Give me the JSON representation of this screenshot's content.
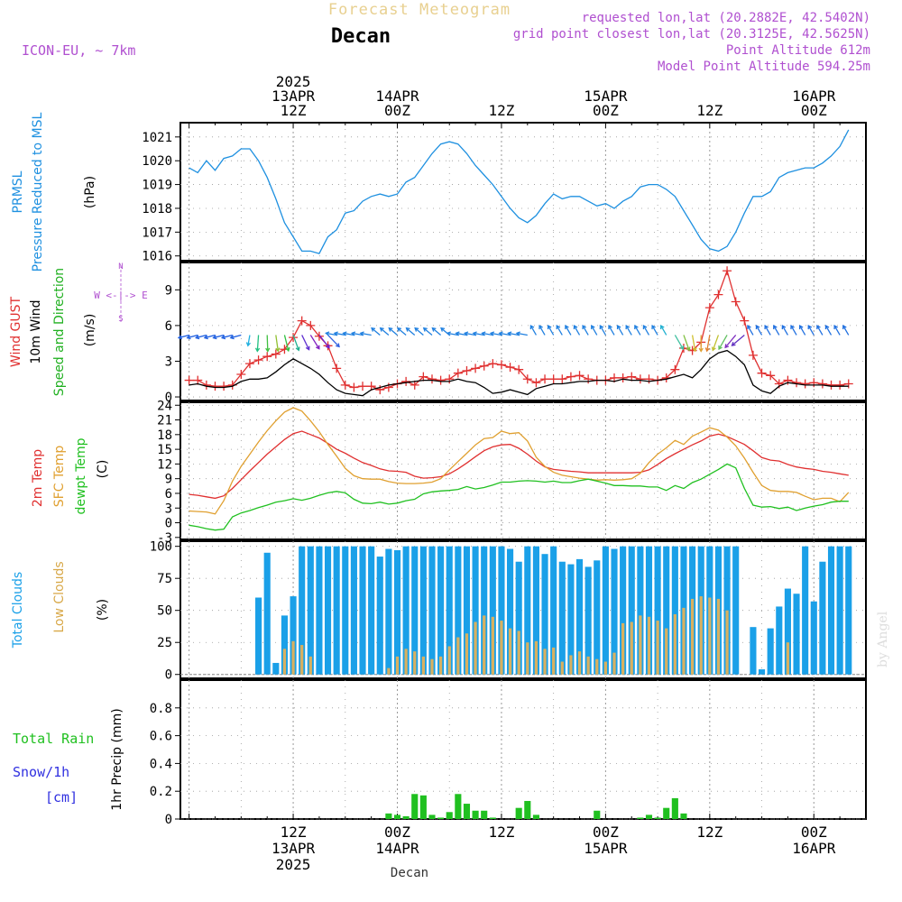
{
  "header": {
    "title": "Forecast Meteogram",
    "location": "Decan",
    "model": "ICON-EU, ~ 7km",
    "requested": "requested lon,lat (20.2882E, 42.5402N)",
    "gridpoint": "grid point closest lon,lat (20.3125E, 42.5625N)",
    "point_alt": "Point Altitude 612m",
    "model_alt": "Model Point Altitude 594.25m",
    "footer_name": "Decan",
    "watermark": "by Angel"
  },
  "time_axis": {
    "top_labels": [
      {
        "t": 12,
        "lines": [
          "2025",
          "13APR",
          "12Z"
        ]
      },
      {
        "t": 24,
        "lines": [
          "14APR",
          "00Z"
        ]
      },
      {
        "t": 36,
        "lines": [
          "12Z"
        ]
      },
      {
        "t": 48,
        "lines": [
          "15APR",
          "00Z"
        ]
      },
      {
        "t": 60,
        "lines": [
          "12Z"
        ]
      },
      {
        "t": 72,
        "lines": [
          "16APR",
          "00Z"
        ]
      }
    ],
    "bottom_labels": [
      {
        "t": 12,
        "lines": [
          "12Z",
          "13APR",
          "2025"
        ]
      },
      {
        "t": 24,
        "lines": [
          "00Z",
          "14APR"
        ]
      },
      {
        "t": 36,
        "lines": [
          "12Z"
        ]
      },
      {
        "t": 48,
        "lines": [
          "00Z",
          "15APR"
        ]
      },
      {
        "t": 60,
        "lines": [
          "12Z"
        ]
      },
      {
        "t": 72,
        "lines": [
          "00Z",
          "16APR"
        ]
      }
    ]
  },
  "colors": {
    "pressure": "#1e90e0",
    "gust": "#e03030",
    "wind": "#000000",
    "t2m": "#e03030",
    "sfc": "#e0a030",
    "dewpt": "#20c020",
    "total_clouds": "#1aa0e8",
    "low_clouds": "#d8b060",
    "rain": "#20c020",
    "snow": "#3030e0",
    "label_purple": "#b050d0"
  },
  "chart_data": [
    {
      "type": "line",
      "title": "PRMSL Pressure Reduced to MSL",
      "ylabel_lines": [
        "PRMSL",
        "Pressure Reduced to MSL"
      ],
      "unit": "(hPa)",
      "ylim": [
        1015.8,
        1021.6
      ],
      "yticks": [
        1016,
        1017,
        1018,
        1019,
        1020,
        1021
      ],
      "x": [
        0,
        1,
        2,
        3,
        4,
        5,
        6,
        7,
        8,
        9,
        10,
        11,
        12,
        13,
        14,
        15,
        16,
        17,
        18,
        19,
        20,
        21,
        22,
        23,
        24,
        25,
        26,
        27,
        28,
        29,
        30,
        31,
        32,
        33,
        34,
        35,
        36,
        37,
        38,
        39,
        40,
        41,
        42,
        43,
        44,
        45,
        46,
        47,
        48,
        49,
        50,
        51,
        52,
        53,
        54,
        55,
        56,
        57,
        58,
        59,
        60,
        61,
        62,
        63,
        64,
        65,
        66,
        67,
        68,
        69,
        70,
        71,
        72,
        73,
        74,
        75,
        76
      ],
      "series": [
        {
          "name": "PRMSL",
          "values": [
            1019.7,
            1019.5,
            1020.0,
            1019.6,
            1020.1,
            1020.2,
            1020.5,
            1020.5,
            1020.0,
            1019.3,
            1018.4,
            1017.4,
            1016.8,
            1016.2,
            1016.2,
            1016.1,
            1016.8,
            1017.1,
            1017.8,
            1017.9,
            1018.3,
            1018.5,
            1018.6,
            1018.5,
            1018.6,
            1019.1,
            1019.3,
            1019.8,
            1020.3,
            1020.7,
            1020.8,
            1020.7,
            1020.3,
            1019.8,
            1019.4,
            1019.0,
            1018.5,
            1018.0,
            1017.6,
            1017.4,
            1017.7,
            1018.2,
            1018.6,
            1018.4,
            1018.5,
            1018.5,
            1018.3,
            1018.1,
            1018.2,
            1018.0,
            1018.3,
            1018.5,
            1018.9,
            1019.0,
            1019.0,
            1018.8,
            1018.5,
            1017.9,
            1017.3,
            1016.7,
            1016.3,
            1016.2,
            1016.4,
            1017.0,
            1017.8,
            1018.5,
            1018.5,
            1018.7,
            1019.3,
            1019.5,
            1019.6,
            1019.7,
            1019.7,
            1019.9,
            1020.2,
            1020.6,
            1021.3
          ]
        }
      ]
    },
    {
      "type": "line",
      "title": "Wind GUST / 10m Wind Speed and Direction",
      "ylabel_lines": [
        "Wind GUST",
        "10m Wind",
        "Speed and Direction"
      ],
      "unit": "(m/s)",
      "compass": "W <-|-> E",
      "ylim": [
        -0.3,
        11.3
      ],
      "yticks": [
        0,
        3,
        6,
        9
      ],
      "x": [
        0,
        1,
        2,
        3,
        4,
        5,
        6,
        7,
        8,
        9,
        10,
        11,
        12,
        13,
        14,
        15,
        16,
        17,
        18,
        19,
        20,
        21,
        22,
        23,
        24,
        25,
        26,
        27,
        28,
        29,
        30,
        31,
        32,
        33,
        34,
        35,
        36,
        37,
        38,
        39,
        40,
        41,
        42,
        43,
        44,
        45,
        46,
        47,
        48,
        49,
        50,
        51,
        52,
        53,
        54,
        55,
        56,
        57,
        58,
        59,
        60,
        61,
        62,
        63,
        64,
        65,
        66,
        67,
        68,
        69,
        70,
        71,
        72,
        73,
        74,
        75,
        76
      ],
      "series": [
        {
          "name": "Wind GUST",
          "values": [
            1.4,
            1.4,
            1.0,
            0.9,
            0.9,
            1.0,
            1.9,
            2.8,
            3.1,
            3.4,
            3.6,
            4.0,
            5.0,
            6.4,
            6.0,
            5.1,
            4.3,
            2.4,
            1.0,
            0.8,
            0.9,
            0.9,
            0.6,
            0.8,
            1.1,
            1.3,
            1.0,
            1.7,
            1.5,
            1.4,
            1.5,
            2.0,
            2.2,
            2.4,
            2.6,
            2.8,
            2.7,
            2.5,
            2.3,
            1.5,
            1.2,
            1.5,
            1.5,
            1.5,
            1.7,
            1.8,
            1.5,
            1.4,
            1.4,
            1.6,
            1.6,
            1.7,
            1.5,
            1.5,
            1.4,
            1.6,
            2.3,
            4.1,
            3.9,
            4.6,
            7.5,
            8.6,
            10.6,
            8.0,
            6.4,
            3.5,
            2.0,
            1.8,
            1.1,
            1.4,
            1.2,
            1.1,
            1.2,
            1.1,
            1.0,
            1.0,
            1.1
          ]
        },
        {
          "name": "10m Wind",
          "values": [
            1.0,
            1.1,
            0.9,
            0.8,
            0.8,
            0.9,
            1.3,
            1.5,
            1.5,
            1.6,
            2.1,
            2.7,
            3.2,
            2.8,
            2.4,
            1.9,
            1.2,
            0.6,
            0.3,
            0.2,
            0.1,
            0.6,
            0.8,
            1.0,
            1.1,
            1.2,
            1.3,
            1.4,
            1.4,
            1.3,
            1.3,
            1.5,
            1.3,
            1.2,
            0.8,
            0.3,
            0.4,
            0.6,
            0.4,
            0.2,
            0.7,
            0.9,
            1.1,
            1.1,
            1.2,
            1.3,
            1.3,
            1.4,
            1.4,
            1.3,
            1.5,
            1.4,
            1.4,
            1.3,
            1.4,
            1.5,
            1.7,
            1.9,
            1.6,
            2.3,
            3.2,
            3.7,
            3.9,
            3.4,
            2.7,
            1.0,
            0.5,
            0.3,
            0.9,
            1.2,
            1.1,
            1.0,
            1.0,
            1.0,
            0.9,
            0.9,
            0.9
          ]
        }
      ],
      "arrows": {
        "from_t": 0,
        "to_t": 76,
        "step": 1,
        "baseline": 5.2
      }
    },
    {
      "type": "line",
      "title": "2m Temp / SFC Temp / dewpt Temp",
      "ylabel_lines": [
        "2m Temp",
        "SFC Temp",
        "dewpt Temp"
      ],
      "unit": "(C)",
      "ylim": [
        -3.4,
        24.6
      ],
      "yticks": [
        -3,
        0,
        3,
        6,
        9,
        12,
        15,
        18,
        21,
        24
      ],
      "x": [
        0,
        1,
        2,
        3,
        4,
        5,
        6,
        7,
        8,
        9,
        10,
        11,
        12,
        13,
        14,
        15,
        16,
        17,
        18,
        19,
        20,
        21,
        22,
        23,
        24,
        25,
        26,
        27,
        28,
        29,
        30,
        31,
        32,
        33,
        34,
        35,
        36,
        37,
        38,
        39,
        40,
        41,
        42,
        43,
        44,
        45,
        46,
        47,
        48,
        49,
        50,
        51,
        52,
        53,
        54,
        55,
        56,
        57,
        58,
        59,
        60,
        61,
        62,
        63,
        64,
        65,
        66,
        67,
        68,
        69,
        70,
        71,
        72,
        73,
        74,
        75,
        76
      ],
      "series": [
        {
          "name": "2m Temp",
          "values": [
            5.8,
            5.6,
            5.3,
            5.0,
            5.5,
            7.0,
            8.8,
            10.6,
            12.3,
            14.0,
            15.5,
            17.0,
            18.2,
            18.7,
            18.0,
            17.3,
            16.2,
            15.0,
            14.2,
            13.2,
            12.3,
            11.7,
            11.0,
            10.6,
            10.5,
            10.3,
            9.5,
            9.1,
            9.2,
            9.4,
            10.0,
            11.0,
            12.2,
            13.5,
            14.7,
            15.5,
            15.9,
            16.0,
            15.2,
            14.0,
            12.6,
            11.4,
            10.9,
            10.7,
            10.5,
            10.4,
            10.2,
            10.2,
            10.2,
            10.2,
            10.2,
            10.2,
            10.3,
            10.8,
            11.9,
            13.1,
            14.1,
            15.0,
            15.9,
            16.7,
            17.7,
            18.1,
            17.6,
            16.8,
            16.0,
            14.7,
            13.3,
            12.8,
            12.6,
            11.9,
            11.4,
            11.1,
            10.9,
            10.5,
            10.3,
            10.0,
            9.7
          ]
        },
        {
          "name": "SFC Temp",
          "values": [
            2.4,
            2.3,
            2.2,
            1.8,
            4.5,
            8.5,
            11.5,
            14.0,
            16.5,
            18.8,
            20.8,
            22.6,
            23.5,
            22.8,
            20.8,
            18.6,
            16.0,
            13.6,
            11.1,
            9.6,
            9.0,
            8.9,
            8.9,
            8.4,
            8.1,
            8.0,
            8.0,
            8.1,
            8.3,
            9.0,
            10.8,
            12.5,
            14.2,
            15.9,
            17.2,
            17.4,
            18.7,
            18.2,
            18.4,
            16.7,
            13.4,
            11.5,
            10.3,
            9.7,
            9.4,
            9.1,
            8.9,
            8.7,
            8.8,
            8.7,
            8.8,
            9.0,
            10.1,
            12.3,
            14.0,
            15.3,
            16.8,
            16.0,
            17.7,
            18.5,
            19.4,
            18.9,
            17.5,
            15.7,
            13.2,
            10.3,
            7.6,
            6.6,
            6.4,
            6.4,
            6.2,
            5.4,
            4.7,
            5.0,
            5.0,
            4.3,
            6.2
          ]
        },
        {
          "name": "dewpt Temp",
          "values": [
            -0.5,
            -0.8,
            -1.2,
            -1.5,
            -1.3,
            1.2,
            2.0,
            2.5,
            3.1,
            3.6,
            4.2,
            4.5,
            4.9,
            4.6,
            5.0,
            5.6,
            6.1,
            6.4,
            6.1,
            4.8,
            4.0,
            3.9,
            4.2,
            3.8,
            4.0,
            4.5,
            4.8,
            5.9,
            6.3,
            6.5,
            6.6,
            6.8,
            7.4,
            6.9,
            7.2,
            7.7,
            8.3,
            8.3,
            8.5,
            8.6,
            8.5,
            8.3,
            8.5,
            8.2,
            8.2,
            8.6,
            8.9,
            8.5,
            8.1,
            7.6,
            7.6,
            7.5,
            7.5,
            7.3,
            7.3,
            6.6,
            7.6,
            7.0,
            8.2,
            8.9,
            9.9,
            10.9,
            12.0,
            11.2,
            7.0,
            3.6,
            3.2,
            3.3,
            2.9,
            3.2,
            2.5,
            3.0,
            3.4,
            3.7,
            4.2,
            4.4,
            4.4
          ]
        }
      ]
    },
    {
      "type": "bar",
      "title": "Total Clouds / Low Clouds",
      "ylabel_lines": [
        "Total Clouds",
        "Low Clouds"
      ],
      "unit": "(%)",
      "ylim": [
        -3,
        104
      ],
      "yticks": [
        0,
        25,
        50,
        75,
        100
      ],
      "x": [
        0,
        1,
        2,
        3,
        4,
        5,
        6,
        7,
        8,
        9,
        10,
        11,
        12,
        13,
        14,
        15,
        16,
        17,
        18,
        19,
        20,
        21,
        22,
        23,
        24,
        25,
        26,
        27,
        28,
        29,
        30,
        31,
        32,
        33,
        34,
        35,
        36,
        37,
        38,
        39,
        40,
        41,
        42,
        43,
        44,
        45,
        46,
        47,
        48,
        49,
        50,
        51,
        52,
        53,
        54,
        55,
        56,
        57,
        58,
        59,
        60,
        61,
        62,
        63,
        64,
        65,
        66,
        67,
        68,
        69,
        70,
        71,
        72,
        73,
        74,
        75,
        76
      ],
      "series": [
        {
          "name": "Total Clouds",
          "values": [
            0,
            0,
            0,
            0,
            0,
            0,
            0,
            0,
            60,
            95,
            9,
            46,
            61,
            100,
            100,
            100,
            100,
            100,
            100,
            100,
            100,
            100,
            92,
            98,
            97,
            100,
            100,
            100,
            100,
            100,
            100,
            100,
            100,
            100,
            100,
            100,
            100,
            98,
            88,
            100,
            100,
            94,
            100,
            88,
            86,
            90,
            84,
            89,
            100,
            98,
            100,
            100,
            100,
            100,
            100,
            100,
            100,
            100,
            100,
            100,
            100,
            100,
            100,
            100,
            0,
            37,
            4,
            36,
            53,
            67,
            63,
            100,
            57,
            88,
            100,
            100,
            100
          ]
        },
        {
          "name": "Low Clouds",
          "values": [
            0,
            0,
            0,
            0,
            0,
            0,
            0,
            0,
            0,
            0,
            0,
            20,
            26,
            23,
            14,
            0,
            0,
            0,
            0,
            0,
            0,
            0,
            0,
            5,
            14,
            20,
            18,
            14,
            12,
            14,
            22,
            29,
            32,
            41,
            46,
            45,
            42,
            36,
            34,
            25,
            26,
            20,
            21,
            10,
            15,
            18,
            14,
            12,
            10,
            17,
            40,
            41,
            46,
            45,
            42,
            36,
            47,
            52,
            59,
            61,
            60,
            59,
            50,
            0,
            0,
            0,
            0,
            0,
            0,
            25,
            0,
            0,
            0,
            0,
            0,
            0,
            0
          ]
        }
      ]
    },
    {
      "type": "bar",
      "title": "Total Rain / Snow/1h 1hr Precip",
      "ylabel_lines": [
        "Total  Rain",
        "Snow/1h",
        "[cm]"
      ],
      "unit": "1hr Precip (mm)",
      "ylim": [
        0,
        1.0
      ],
      "yticks": [
        0,
        0.2,
        0.4,
        0.6,
        0.8
      ],
      "ytick_labels": [
        "0",
        "0.2",
        "0.4",
        "0.6",
        "0.8"
      ],
      "x": [
        23,
        24,
        25,
        26,
        27,
        28,
        29,
        30,
        31,
        32,
        33,
        34,
        35,
        38,
        39,
        40,
        47,
        52,
        53,
        54,
        55,
        56,
        57
      ],
      "series": [
        {
          "name": "Total Rain",
          "values": [
            0.04,
            0.03,
            0.02,
            0.18,
            0.17,
            0.03,
            0.01,
            0.05,
            0.18,
            0.11,
            0.06,
            0.06,
            0.01,
            0.08,
            0.13,
            0.03,
            0.06,
            0.01,
            0.03,
            0.01,
            0.08,
            0.15,
            0.04
          ]
        }
      ]
    }
  ]
}
